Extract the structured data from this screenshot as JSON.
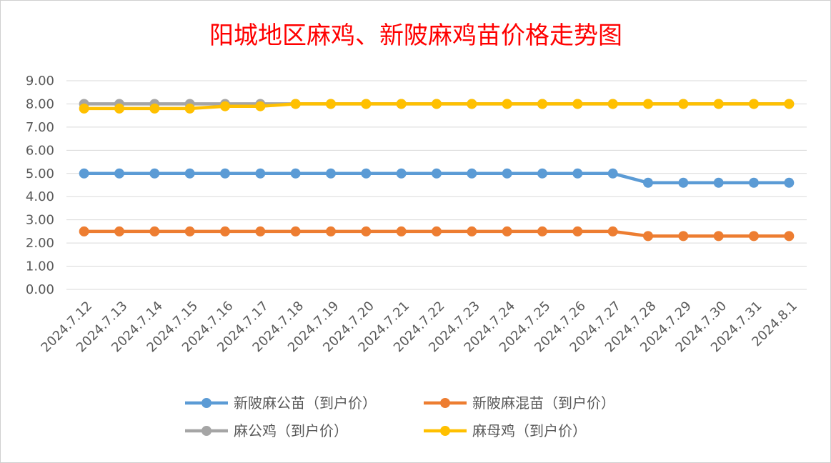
{
  "chart_data": {
    "type": "line",
    "title": "阳城地区麻鸡、新陂麻鸡苗价格走势图",
    "xlabel": "",
    "ylabel": "",
    "ylim": [
      0,
      9
    ],
    "yticks": [
      "0.00",
      "1.00",
      "2.00",
      "3.00",
      "4.00",
      "5.00",
      "6.00",
      "7.00",
      "8.00",
      "9.00"
    ],
    "grid": true,
    "legend_position": "bottom",
    "categories": [
      "2024.7.12",
      "2024.7.13",
      "2024.7.14",
      "2024.7.15",
      "2024.7.16",
      "2024.7.17",
      "2024.7.18",
      "2024.7.19",
      "2024.7.20",
      "2024.7.21",
      "2024.7.22",
      "2024.7.23",
      "2024.7.24",
      "2024.7.25",
      "2024.7.26",
      "2024.7.27",
      "2024.7.28",
      "2024.7.29",
      "2024.7.30",
      "2024.7.31",
      "2024.8.1"
    ],
    "series": [
      {
        "name": "新陂麻公苗（到户价）",
        "color": "#5b9bd5",
        "values": [
          5.0,
          5.0,
          5.0,
          5.0,
          5.0,
          5.0,
          5.0,
          5.0,
          5.0,
          5.0,
          5.0,
          5.0,
          5.0,
          5.0,
          5.0,
          5.0,
          4.6,
          4.6,
          4.6,
          4.6,
          4.6
        ]
      },
      {
        "name": "新陂麻混苗（到户价）",
        "color": "#ed7d31",
        "values": [
          2.5,
          2.5,
          2.5,
          2.5,
          2.5,
          2.5,
          2.5,
          2.5,
          2.5,
          2.5,
          2.5,
          2.5,
          2.5,
          2.5,
          2.5,
          2.5,
          2.3,
          2.3,
          2.3,
          2.3,
          2.3
        ]
      },
      {
        "name": "麻公鸡（到户价）",
        "color": "#a5a5a5",
        "values": [
          8.0,
          8.0,
          8.0,
          8.0,
          8.0,
          8.0,
          8.0,
          8.0,
          8.0,
          8.0,
          8.0,
          8.0,
          8.0,
          8.0,
          8.0,
          8.0,
          8.0,
          8.0,
          8.0,
          8.0,
          8.0
        ]
      },
      {
        "name": "麻母鸡（到户价）",
        "color": "#ffc000",
        "values": [
          7.8,
          7.8,
          7.8,
          7.8,
          7.9,
          7.9,
          8.0,
          8.0,
          8.0,
          8.0,
          8.0,
          8.0,
          8.0,
          8.0,
          8.0,
          8.0,
          8.0,
          8.0,
          8.0,
          8.0,
          8.0
        ]
      }
    ]
  }
}
